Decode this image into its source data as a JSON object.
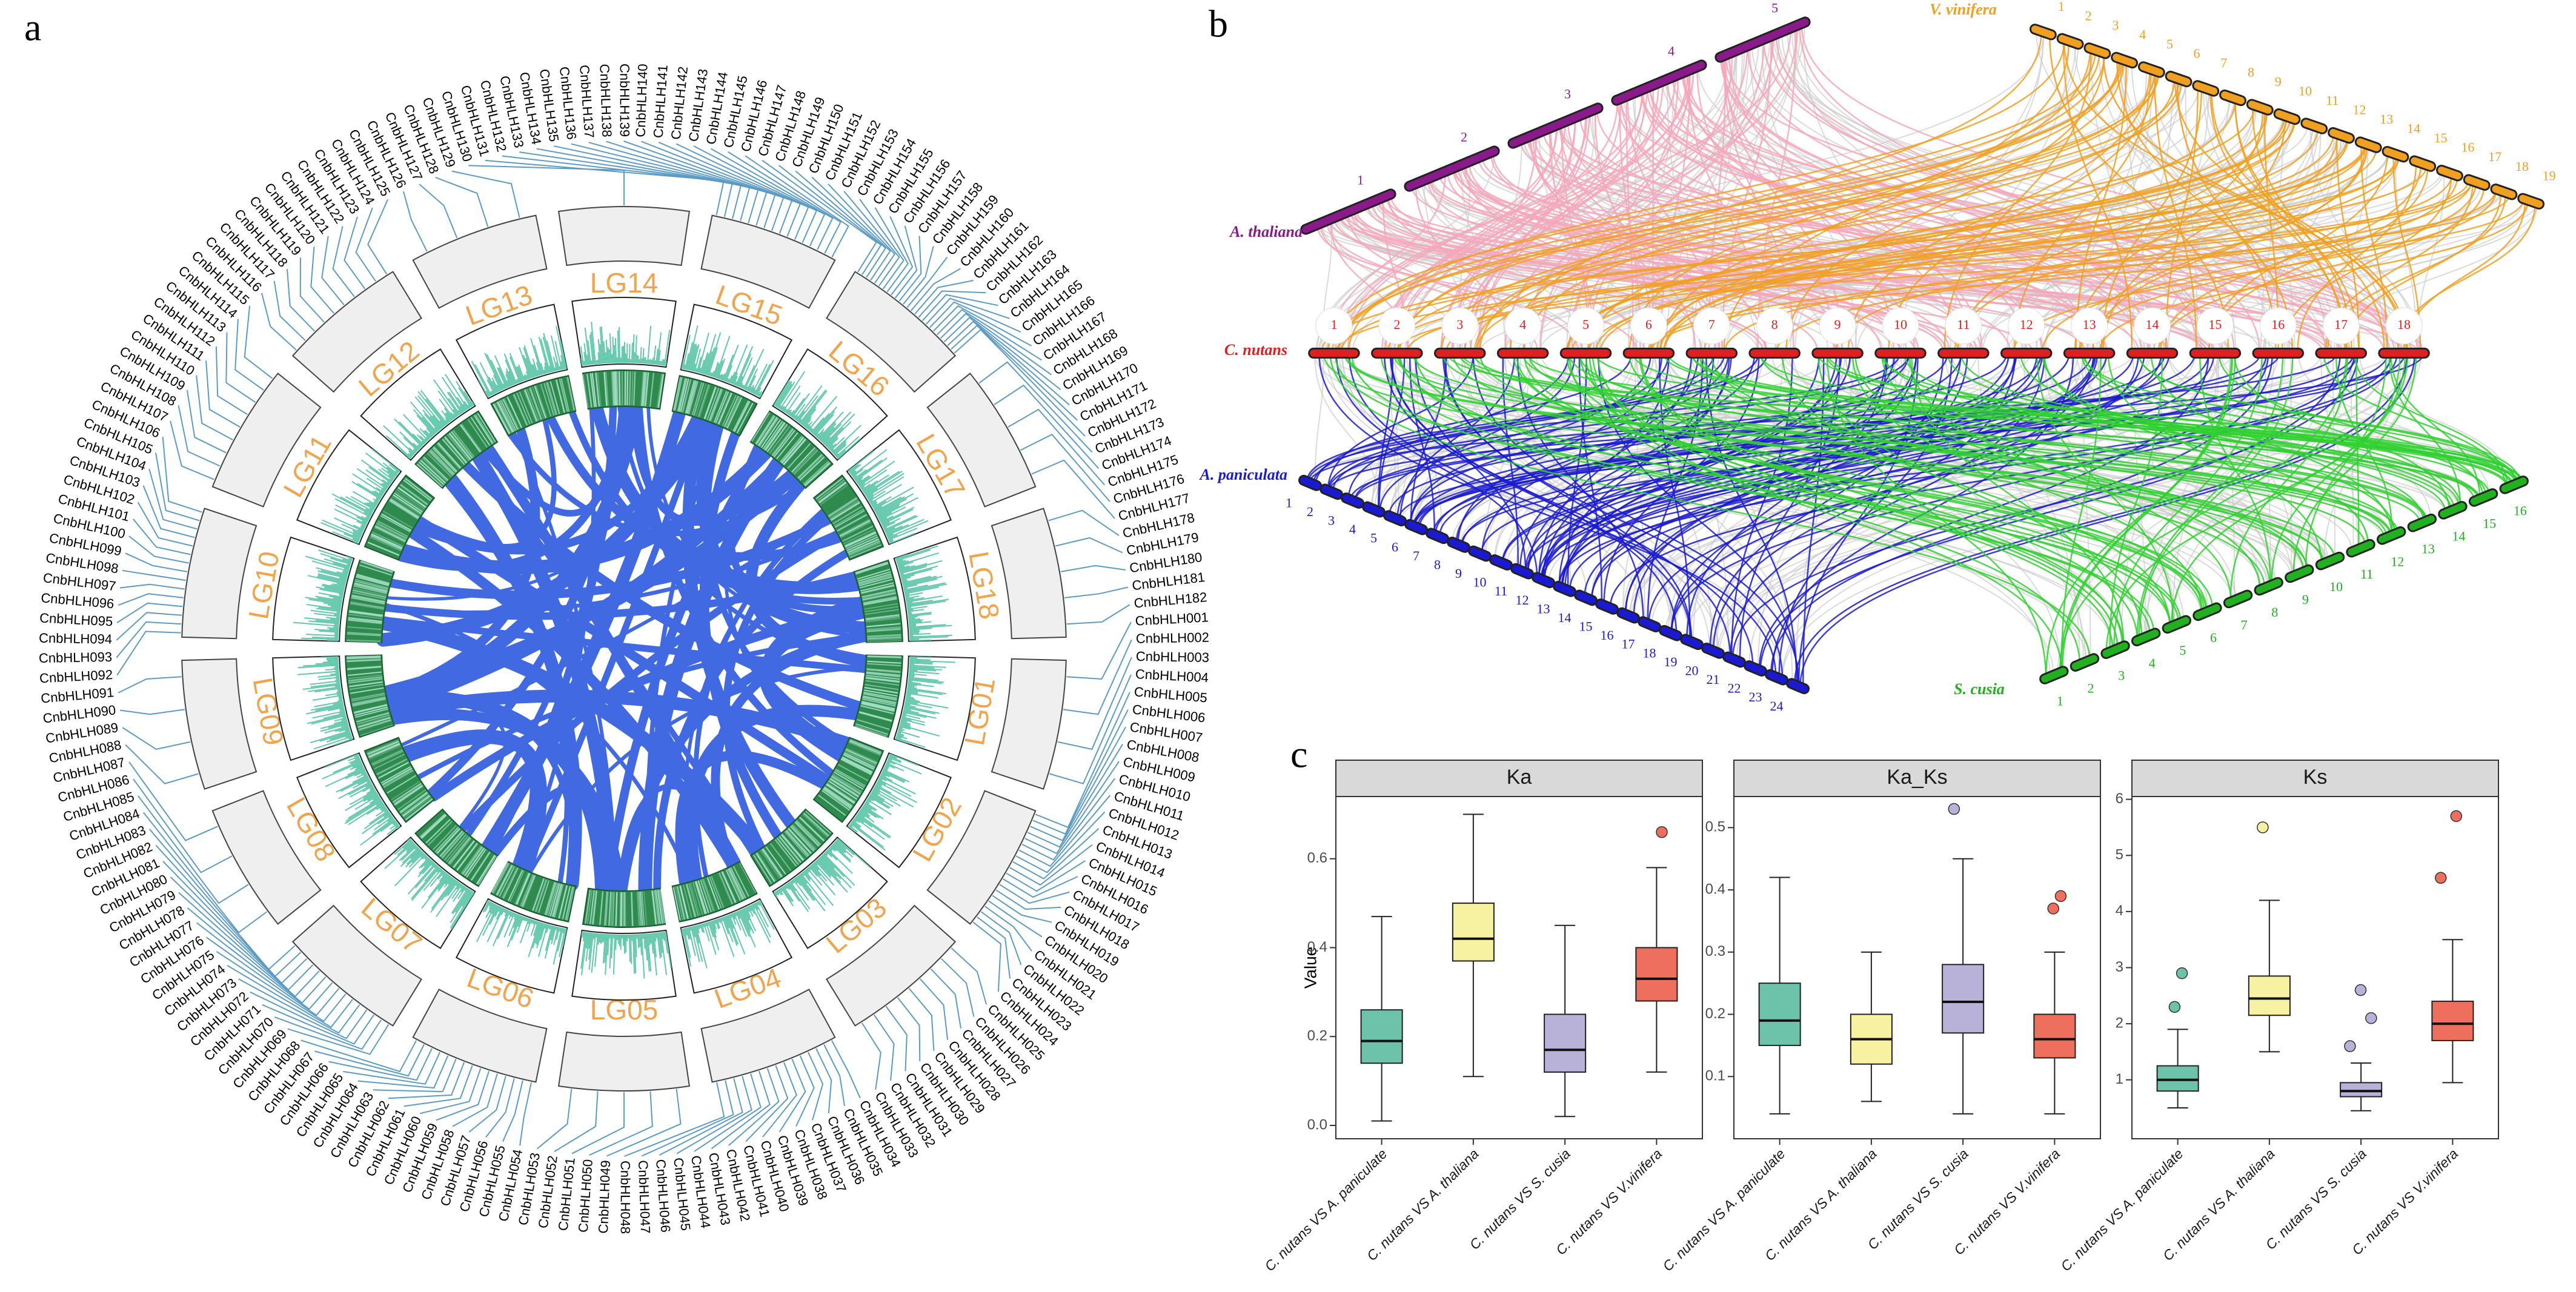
{
  "panel_a": {
    "label": "a",
    "chromosomes": [
      {
        "name": "LG01",
        "genes": [
          "CnbHLH001",
          "CnbHLH002",
          "CnbHLH003",
          "CnbHLH004"
        ]
      },
      {
        "name": "LG02",
        "genes": [
          "CnbHLH005",
          "CnbHLH006",
          "CnbHLH007",
          "CnbHLH008",
          "CnbHLH009",
          "CnbHLH010",
          "CnbHLH011",
          "CnbHLH012",
          "CnbHLH013",
          "CnbHLH014",
          "CnbHLH015",
          "CnbHLH016",
          "CnbHLH017",
          "CnbHLH018",
          "CnbHLH019",
          "CnbHLH020",
          "CnbHLH021",
          "CnbHLH022",
          "CnbHLH023",
          "CnbHLH024"
        ]
      },
      {
        "name": "LG03",
        "genes": [
          "CnbHLH025",
          "CnbHLH026",
          "CnbHLH027",
          "CnbHLH028",
          "CnbHLH029",
          "CnbHLH030",
          "CnbHLH031",
          "CnbHLH032",
          "CnbHLH033"
        ]
      },
      {
        "name": "LG04",
        "genes": [
          "CnbHLH034",
          "CnbHLH035",
          "CnbHLH036",
          "CnbHLH037",
          "CnbHLH038",
          "CnbHLH039",
          "CnbHLH040",
          "CnbHLH041",
          "CnbHLH042",
          "CnbHLH043",
          "CnbHLH044",
          "CnbHLH045",
          "CnbHLH046",
          "CnbHLH047",
          "CnbHLH048"
        ]
      },
      {
        "name": "LG05",
        "genes": [
          "CnbHLH049",
          "CnbHLH050",
          "CnbHLH051",
          "CnbHLH052",
          "CnbHLH053"
        ]
      },
      {
        "name": "LG06",
        "genes": [
          "CnbHLH054",
          "CnbHLH055",
          "CnbHLH056",
          "CnbHLH057",
          "CnbHLH058",
          "CnbHLH059",
          "CnbHLH060",
          "CnbHLH061",
          "CnbHLH062",
          "CnbHLH063",
          "CnbHLH064",
          "CnbHLH065",
          "CnbHLH066",
          "CnbHLH067",
          "CnbHLH068"
        ]
      },
      {
        "name": "LG07",
        "genes": [
          "CnbHLH069",
          "CnbHLH070",
          "CnbHLH071",
          "CnbHLH072",
          "CnbHLH073",
          "CnbHLH074",
          "CnbHLH075",
          "CnbHLH076",
          "CnbHLH077",
          "CnbHLH078",
          "CnbHLH079",
          "CnbHLH080",
          "CnbHLH081",
          "CnbHLH082",
          "CnbHLH083"
        ]
      },
      {
        "name": "LG08",
        "genes": [
          "CnbHLH084",
          "CnbHLH085",
          "CnbHLH086",
          "CnbHLH087"
        ]
      },
      {
        "name": "LG09",
        "genes": [
          "CnbHLH088",
          "CnbHLH089",
          "CnbHLH090",
          "CnbHLH091"
        ]
      },
      {
        "name": "LG10",
        "genes": [
          "CnbHLH092",
          "CnbHLH093",
          "CnbHLH094",
          "CnbHLH095",
          "CnbHLH096",
          "CnbHLH097",
          "CnbHLH098",
          "CnbHLH099",
          "CnbHLH100",
          "CnbHLH101",
          "CnbHLH102",
          "CnbHLH103",
          "CnbHLH104",
          "CnbHLH105",
          "CnbHLH106"
        ]
      },
      {
        "name": "LG11",
        "genes": [
          "CnbHLH107",
          "CnbHLH108",
          "CnbHLH109",
          "CnbHLH110",
          "CnbHLH111",
          "CnbHLH112",
          "CnbHLH113",
          "CnbHLH114",
          "CnbHLH115"
        ]
      },
      {
        "name": "LG12",
        "genes": [
          "CnbHLH116",
          "CnbHLH117",
          "CnbHLH118",
          "CnbHLH119",
          "CnbHLH120",
          "CnbHLH121",
          "CnbHLH122",
          "CnbHLH123",
          "CnbHLH124",
          "CnbHLH125"
        ]
      },
      {
        "name": "LG13",
        "genes": [
          "CnbHLH126",
          "CnbHLH127",
          "CnbHLH128",
          "CnbHLH129"
        ]
      },
      {
        "name": "LG14",
        "genes": [
          "CnbHLH130"
        ]
      },
      {
        "name": "LG15",
        "genes": [
          "CnbHLH131",
          "CnbHLH132",
          "CnbHLH133",
          "CnbHLH134",
          "CnbHLH135",
          "CnbHLH136",
          "CnbHLH137",
          "CnbHLH138",
          "CnbHLH139",
          "CnbHLH140",
          "CnbHLH141",
          "CnbHLH142",
          "CnbHLH143",
          "CnbHLH144",
          "CnbHLH145",
          "CnbHLH146"
        ]
      },
      {
        "name": "LG16",
        "genes": [
          "CnbHLH147",
          "CnbHLH148",
          "CnbHLH149",
          "CnbHLH150",
          "CnbHLH151",
          "CnbHLH152",
          "CnbHLH153",
          "CnbHLH154",
          "CnbHLH155",
          "CnbHLH156",
          "CnbHLH157",
          "CnbHLH158",
          "CnbHLH159",
          "CnbHLH160",
          "CnbHLH161",
          "CnbHLH162",
          "CnbHLH163",
          "CnbHLH164",
          "CnbHLH165",
          "CnbHLH166",
          "CnbHLH167",
          "CnbHLH168",
          "CnbHLH169",
          "CnbHLH170",
          "CnbHLH171",
          "CnbHLH172"
        ]
      },
      {
        "name": "LG17",
        "genes": [
          "CnbHLH173",
          "CnbHLH174",
          "CnbHLH175",
          "CnbHLH176",
          "CnbHLH177"
        ]
      },
      {
        "name": "LG18",
        "genes": [
          "CnbHLH178",
          "CnbHLH179",
          "CnbHLH180",
          "CnbHLH181",
          "CnbHLH182"
        ]
      }
    ]
  },
  "panel_b": {
    "label": "b",
    "genomes": [
      {
        "name": "A. thaliana",
        "color": "#8a1a8a",
        "chromosomes": [
          1,
          2,
          3,
          4,
          5
        ]
      },
      {
        "name": "V. vinifera",
        "color": "#f0a020",
        "chromosomes": [
          1,
          2,
          3,
          4,
          5,
          6,
          7,
          8,
          9,
          10,
          11,
          12,
          13,
          14,
          15,
          16,
          17,
          18,
          19
        ]
      },
      {
        "name": "C. nutans",
        "color": "#e02020",
        "chromosomes": [
          1,
          2,
          3,
          4,
          5,
          6,
          7,
          8,
          9,
          10,
          11,
          12,
          13,
          14,
          15,
          16,
          17,
          18
        ]
      },
      {
        "name": "A. paniculata",
        "color": "#1a1ad0",
        "chromosomes": [
          1,
          2,
          3,
          4,
          5,
          6,
          7,
          8,
          9,
          10,
          11,
          12,
          13,
          14,
          15,
          16,
          17,
          18,
          19,
          20,
          21,
          22,
          23,
          24
        ]
      },
      {
        "name": "S. cusia",
        "color": "#20b020",
        "chromosomes": [
          1,
          2,
          3,
          4,
          5,
          6,
          7,
          8,
          9,
          10,
          11,
          12,
          13,
          14,
          15,
          16
        ]
      }
    ]
  },
  "chart_data": {
    "type": "box",
    "label": "c",
    "y_label": "Value",
    "categories": [
      "C. nutans VS A. paniculate",
      "C. nutans VS A. thaliana",
      "C. nutans VS S. cusia",
      "C. nutans VS V.vinifera"
    ],
    "colors": [
      "#6cc3a9",
      "#f6f2a2",
      "#b8b2d8",
      "#ee6f5e"
    ],
    "facets": [
      {
        "title": "Ka",
        "ylim": [
          -0.03,
          0.74
        ],
        "yticks": [
          {
            "value": 0,
            "label": "0.0"
          },
          0.2,
          0.4,
          0.6
        ],
        "boxes": [
          {
            "min": 0.01,
            "q1": 0.14,
            "median": 0.19,
            "q3": 0.26,
            "max": 0.47,
            "outliers": []
          },
          {
            "min": 0.11,
            "q1": 0.37,
            "median": 0.42,
            "q3": 0.5,
            "max": 0.7,
            "outliers": []
          },
          {
            "min": 0.02,
            "q1": 0.12,
            "median": 0.17,
            "q3": 0.25,
            "max": 0.45,
            "outliers": []
          },
          {
            "min": 0.12,
            "q1": 0.28,
            "median": 0.33,
            "q3": 0.4,
            "max": 0.58,
            "outliers": [
              0.66
            ]
          }
        ]
      },
      {
        "title": "Ka_Ks",
        "ylim": [
          0,
          0.55
        ],
        "yticks": [
          0.1,
          0.2,
          0.3,
          0.4,
          0.5
        ],
        "boxes": [
          {
            "min": 0.04,
            "q1": 0.15,
            "median": 0.19,
            "q3": 0.25,
            "max": 0.42,
            "outliers": []
          },
          {
            "min": 0.06,
            "q1": 0.12,
            "median": 0.16,
            "q3": 0.2,
            "max": 0.3,
            "outliers": []
          },
          {
            "min": 0.04,
            "q1": 0.17,
            "median": 0.22,
            "q3": 0.28,
            "max": 0.45,
            "outliers": [
              0.53
            ]
          },
          {
            "min": 0.04,
            "q1": 0.13,
            "median": 0.16,
            "q3": 0.2,
            "max": 0.3,
            "outliers": [
              0.37,
              0.39
            ]
          }
        ]
      },
      {
        "title": "Ks",
        "ylim": [
          -0.05,
          6.05
        ],
        "yticks": [
          1,
          2,
          3,
          4,
          5,
          6
        ],
        "boxes": [
          {
            "min": 0.5,
            "q1": 0.8,
            "median": 1.0,
            "q3": 1.25,
            "max": 1.9,
            "outliers": [
              2.3,
              2.9
            ]
          },
          {
            "min": 1.5,
            "q1": 2.15,
            "median": 2.45,
            "q3": 2.85,
            "max": 4.2,
            "outliers": [
              5.5
            ]
          },
          {
            "min": 0.45,
            "q1": 0.7,
            "median": 0.8,
            "q3": 0.95,
            "max": 1.3,
            "outliers": [
              1.6,
              2.1,
              2.6
            ]
          },
          {
            "min": 0.95,
            "q1": 1.7,
            "median": 2.0,
            "q3": 2.4,
            "max": 3.5,
            "outliers": [
              4.6,
              5.7
            ]
          }
        ]
      }
    ]
  }
}
